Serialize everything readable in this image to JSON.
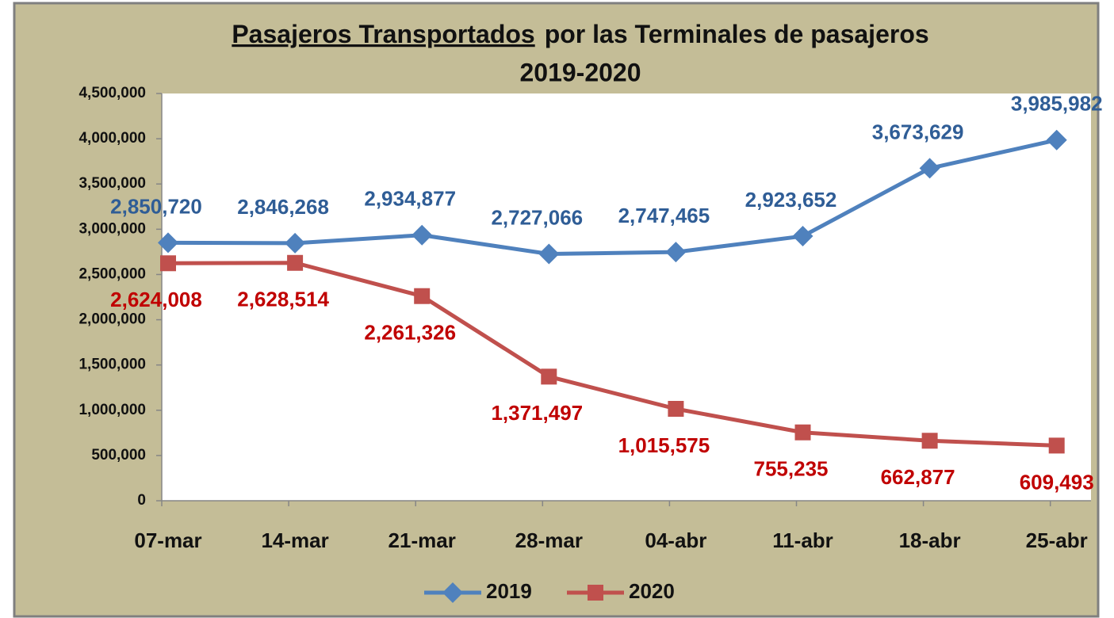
{
  "chart_data": {
    "type": "line",
    "title": [
      "Pasajeros Transportados",
      "por las Terminales de pasajeros"
    ],
    "subtitle": "2019-2020",
    "categories": [
      "07-mar",
      "14-mar",
      "21-mar",
      "28-mar",
      "04-abr",
      "11-abr",
      "18-abr",
      "25-abr"
    ],
    "series": [
      {
        "name": "2019",
        "color": "#4f81bd",
        "label_color": "#2f5d96",
        "marker": "diamond",
        "values": [
          2850720,
          2846268,
          2934877,
          2727066,
          2747465,
          2923652,
          3673629,
          3985982
        ],
        "value_labels": [
          "2,850,720",
          "2,846,268",
          "2,934,877",
          "2,727,066",
          "2,747,465",
          "2,923,652",
          "3,673,629",
          "3,985,982"
        ]
      },
      {
        "name": "2020",
        "color": "#c0504d",
        "label_color": "#c00000",
        "marker": "square",
        "values": [
          2624008,
          2628514,
          2261326,
          1371497,
          1015575,
          755235,
          662877,
          609493
        ],
        "value_labels": [
          "2,624,008",
          "2,628,514",
          "2,261,326",
          "1,371,497",
          "1,015,575",
          "755,235",
          "662,877",
          "609,493"
        ]
      }
    ],
    "ylim": [
      0,
      4500000
    ],
    "yticks": [
      0,
      {
        "value": 500000,
        "label": "500,000"
      },
      {
        "value": 1000000,
        "label": "1,000,000"
      },
      {
        "value": 1500000,
        "label": "1,500,000"
      },
      {
        "value": 2000000,
        "label": "2,000,000"
      },
      {
        "value": 2500000,
        "label": "2,500,000"
      },
      {
        "value": 3000000,
        "label": "3,000,000"
      },
      {
        "value": 3500000,
        "label": "3,500,000"
      },
      {
        "value": 4000000,
        "label": "4,000,000"
      },
      {
        "value": 4500000,
        "label": "4,500,000"
      }
    ],
    "grid": false,
    "legend": "bottom"
  }
}
